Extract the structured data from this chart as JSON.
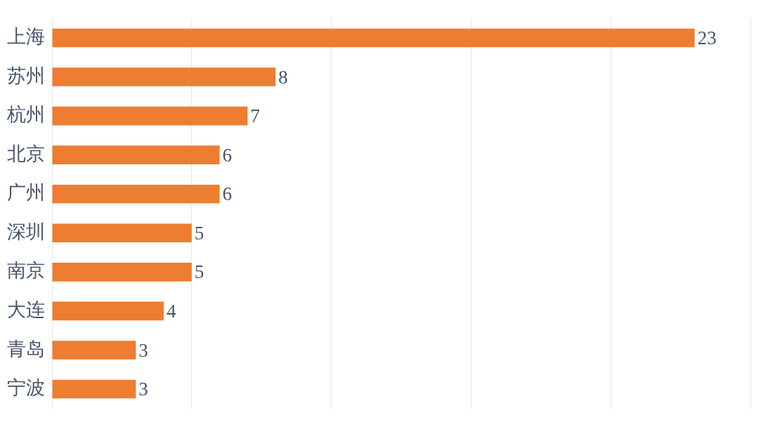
{
  "chart_data": {
    "type": "bar",
    "orientation": "horizontal",
    "categories": [
      "上海",
      "苏州",
      "杭州",
      "北京",
      "广州",
      "深圳",
      "南京",
      "大连",
      "青岛",
      "宁波"
    ],
    "values": [
      23,
      8,
      7,
      6,
      6,
      5,
      5,
      4,
      3,
      3
    ],
    "color": "#ed7d31",
    "xlim": [
      0,
      25
    ],
    "xticks": [
      {
        "value": 0,
        "label": null
      },
      {
        "value": 5,
        "label": null
      },
      {
        "value": 10,
        "label": null
      },
      {
        "value": 15,
        "label": null
      },
      {
        "value": 20,
        "label": null
      },
      {
        "value": 25,
        "label": null
      }
    ],
    "grid": "x",
    "tick_labels": "y",
    "data_labels": true,
    "legend": false
  }
}
